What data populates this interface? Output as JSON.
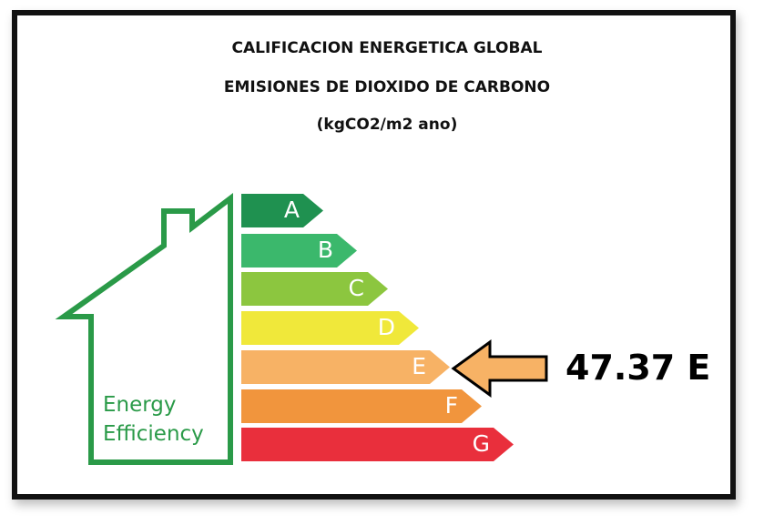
{
  "header": {
    "line1": "CALIFICACION ENERGETICA GLOBAL",
    "line2": "EMISIONES DE DIOXIDO DE CARBONO",
    "line3": "(kgCO2/m2 ano)"
  },
  "logo": {
    "line1": "Energy",
    "line2": "Efficiency",
    "color": "#2a9a48"
  },
  "bands": [
    {
      "letter": "A",
      "color": "#1f9150"
    },
    {
      "letter": "B",
      "color": "#3bb86c"
    },
    {
      "letter": "C",
      "color": "#8cc63f"
    },
    {
      "letter": "D",
      "color": "#f0e83a"
    },
    {
      "letter": "E",
      "color": "#f7b265"
    },
    {
      "letter": "F",
      "color": "#f1953d"
    },
    {
      "letter": "G",
      "color": "#e92f3c"
    }
  ],
  "rating": {
    "value_text": "47.37 E",
    "band_letter": "E",
    "arrow_color": "#f7b265"
  }
}
